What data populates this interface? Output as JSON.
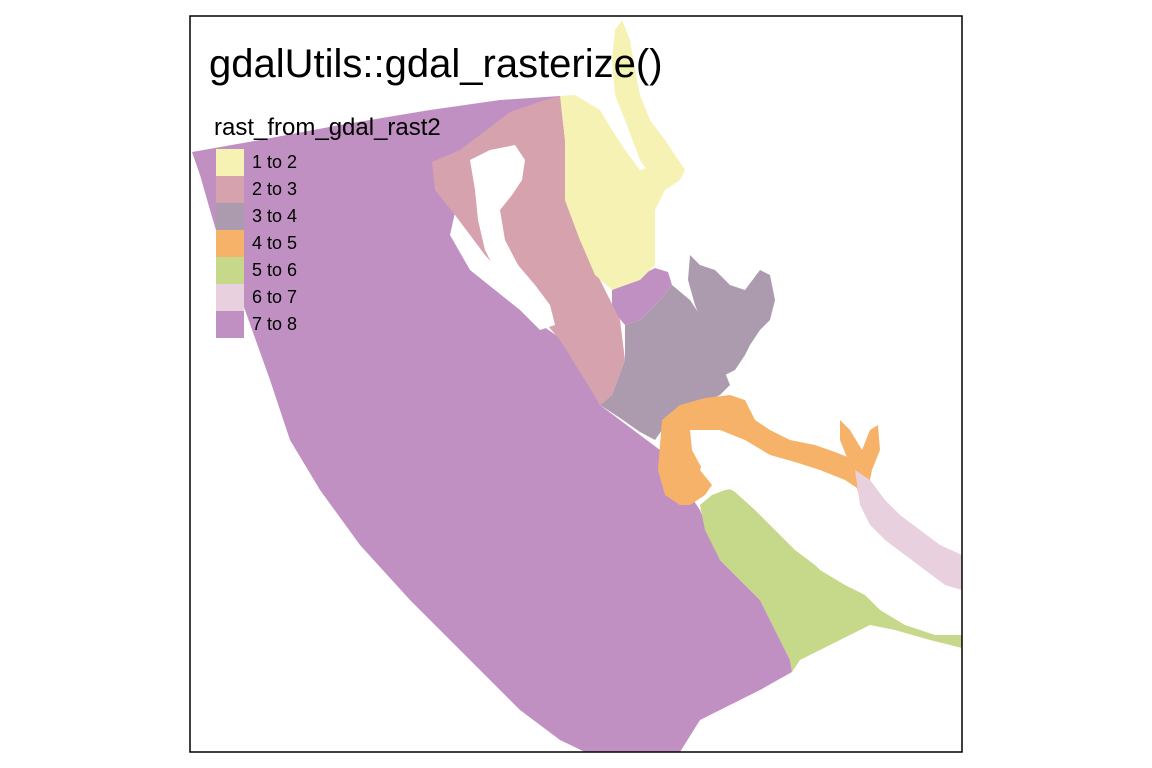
{
  "map": {
    "title": "gdalUtils::gdal_rasterize()",
    "legend": {
      "title": "rast_from_gdal_rast2",
      "items": [
        {
          "label": "1 to 2",
          "color": "#F5F2B3"
        },
        {
          "label": "2 to 3",
          "color": "#D6A2AE"
        },
        {
          "label": "3 to 4",
          "color": "#AC9BAF"
        },
        {
          "label": "4 to 5",
          "color": "#F7B26A"
        },
        {
          "label": "5 to 6",
          "color": "#C6D88A"
        },
        {
          "label": "6 to 7",
          "color": "#E8D0DE"
        },
        {
          "label": "7 to 8",
          "color": "#C190C3"
        }
      ]
    },
    "colors": {
      "frame": "#000000",
      "background": "#ffffff",
      "land": "#ffffff"
    }
  }
}
